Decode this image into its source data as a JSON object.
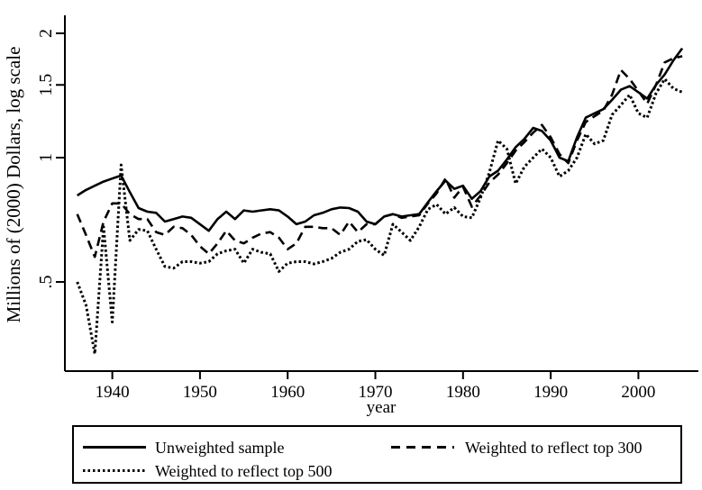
{
  "figure": {
    "background_color": "#ffffff",
    "line_color": "#000000"
  },
  "chart_data": {
    "type": "line",
    "title": "",
    "xlabel": "year",
    "ylabel": "Millions of (2000) Dollars, log scale",
    "y_scale": "log",
    "grid": false,
    "legend_position": "bottom",
    "x_range": [
      1936,
      2005
    ],
    "ylim": [
      0.3,
      2.1
    ],
    "x_axis_ticks": [
      1940,
      1950,
      1960,
      1970,
      1980,
      1990,
      2000
    ],
    "y_axis_ticks": [
      {
        "value": 0.5,
        "label": ".5"
      },
      {
        "value": 1,
        "label": "1"
      },
      {
        "value": 1.5,
        "label": "1.5"
      },
      {
        "value": 2,
        "label": "2"
      }
    ],
    "x": [
      1936,
      1937,
      1938,
      1939,
      1940,
      1941,
      1942,
      1943,
      1944,
      1945,
      1946,
      1947,
      1948,
      1949,
      1950,
      1951,
      1952,
      1953,
      1954,
      1955,
      1956,
      1957,
      1958,
      1959,
      1960,
      1961,
      1962,
      1963,
      1964,
      1965,
      1966,
      1967,
      1968,
      1969,
      1970,
      1971,
      1972,
      1973,
      1974,
      1975,
      1976,
      1977,
      1978,
      1979,
      1980,
      1981,
      1982,
      1983,
      1984,
      1985,
      1986,
      1987,
      1988,
      1989,
      1990,
      1991,
      1992,
      1993,
      1994,
      1995,
      1996,
      1997,
      1998,
      1999,
      2000,
      2001,
      2002,
      2003,
      2004,
      2005
    ],
    "series": [
      {
        "name": "Unweighted sample",
        "style": "solid",
        "values": [
          0.81,
          0.835,
          0.855,
          0.875,
          0.89,
          0.905,
          0.825,
          0.755,
          0.74,
          0.735,
          0.7,
          0.71,
          0.72,
          0.715,
          0.69,
          0.665,
          0.71,
          0.74,
          0.71,
          0.745,
          0.74,
          0.745,
          0.75,
          0.745,
          0.72,
          0.69,
          0.7,
          0.725,
          0.735,
          0.75,
          0.757,
          0.755,
          0.74,
          0.7,
          0.69,
          0.72,
          0.73,
          0.72,
          0.725,
          0.73,
          0.78,
          0.83,
          0.88,
          0.84,
          0.855,
          0.795,
          0.83,
          0.9,
          0.93,
          0.99,
          1.06,
          1.11,
          1.18,
          1.16,
          1.1,
          1.0,
          0.98,
          1.12,
          1.25,
          1.28,
          1.31,
          1.38,
          1.46,
          1.49,
          1.44,
          1.39,
          1.5,
          1.59,
          1.72,
          1.84
        ]
      },
      {
        "name": "Weighted to reflect top 300",
        "style": "dashed",
        "values": [
          0.73,
          0.65,
          0.575,
          0.7,
          0.775,
          0.775,
          0.73,
          0.71,
          0.71,
          0.66,
          0.65,
          0.68,
          0.675,
          0.65,
          0.61,
          0.585,
          0.62,
          0.665,
          0.63,
          0.62,
          0.64,
          0.655,
          0.66,
          0.64,
          0.6,
          0.62,
          0.68,
          0.68,
          0.675,
          0.675,
          0.65,
          0.7,
          0.66,
          0.69,
          0.69,
          0.72,
          0.73,
          0.715,
          0.72,
          0.725,
          0.775,
          0.82,
          0.89,
          0.8,
          0.85,
          0.76,
          0.81,
          0.87,
          0.91,
          0.97,
          1.04,
          1.09,
          1.15,
          1.2,
          1.12,
          1.02,
          0.97,
          1.1,
          1.22,
          1.26,
          1.3,
          1.42,
          1.63,
          1.55,
          1.45,
          1.35,
          1.5,
          1.7,
          1.74,
          1.76
        ]
      },
      {
        "name": "Weighted to reflect top 500",
        "style": "dotted",
        "values": [
          0.5,
          0.44,
          0.335,
          0.68,
          0.4,
          0.96,
          0.63,
          0.67,
          0.665,
          0.6,
          0.545,
          0.54,
          0.56,
          0.56,
          0.555,
          0.56,
          0.585,
          0.595,
          0.6,
          0.555,
          0.6,
          0.59,
          0.585,
          0.53,
          0.555,
          0.56,
          0.56,
          0.553,
          0.56,
          0.57,
          0.59,
          0.6,
          0.627,
          0.633,
          0.6,
          0.58,
          0.69,
          0.66,
          0.63,
          0.68,
          0.75,
          0.77,
          0.73,
          0.757,
          0.72,
          0.715,
          0.8,
          0.92,
          1.1,
          1.05,
          0.865,
          0.95,
          1.0,
          1.05,
          1.0,
          0.9,
          0.93,
          1.0,
          1.14,
          1.08,
          1.1,
          1.27,
          1.34,
          1.42,
          1.28,
          1.25,
          1.43,
          1.55,
          1.47,
          1.44
        ]
      }
    ]
  }
}
